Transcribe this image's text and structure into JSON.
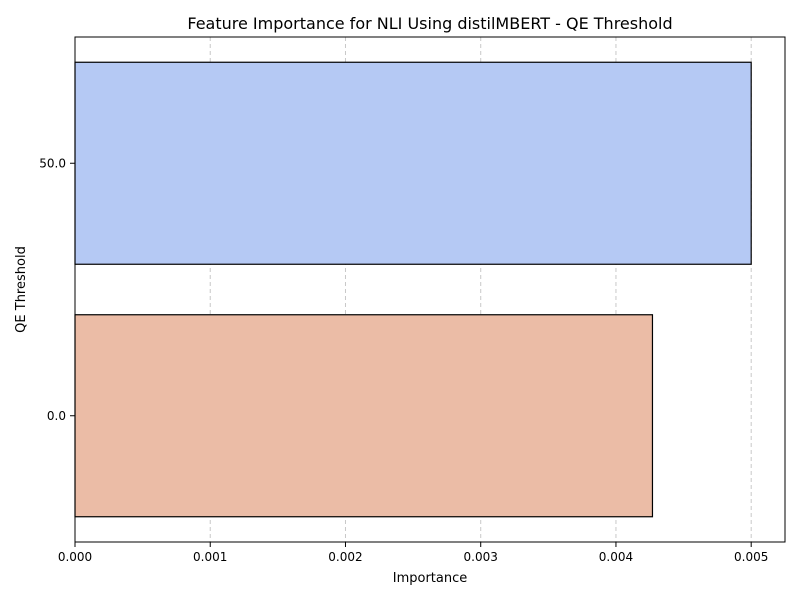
{
  "chart_data": {
    "type": "bar",
    "orientation": "horizontal",
    "title": "Feature Importance for NLI Using distilMBERT - QE Threshold",
    "xlabel": "Importance",
    "ylabel": "QE Threshold",
    "categories": [
      "50.0",
      "0.0"
    ],
    "values": [
      0.005,
      0.00427
    ],
    "xlim": [
      0,
      0.00525
    ],
    "xticks": [
      "0.000",
      "0.001",
      "0.002",
      "0.003",
      "0.004",
      "0.005"
    ],
    "xtick_values": [
      0,
      0.001,
      0.002,
      0.003,
      0.004,
      0.005
    ],
    "grid": "x-dashed",
    "colors": [
      "#b5c9f4",
      "#ebbca6"
    ],
    "edge_color": "#000000"
  }
}
